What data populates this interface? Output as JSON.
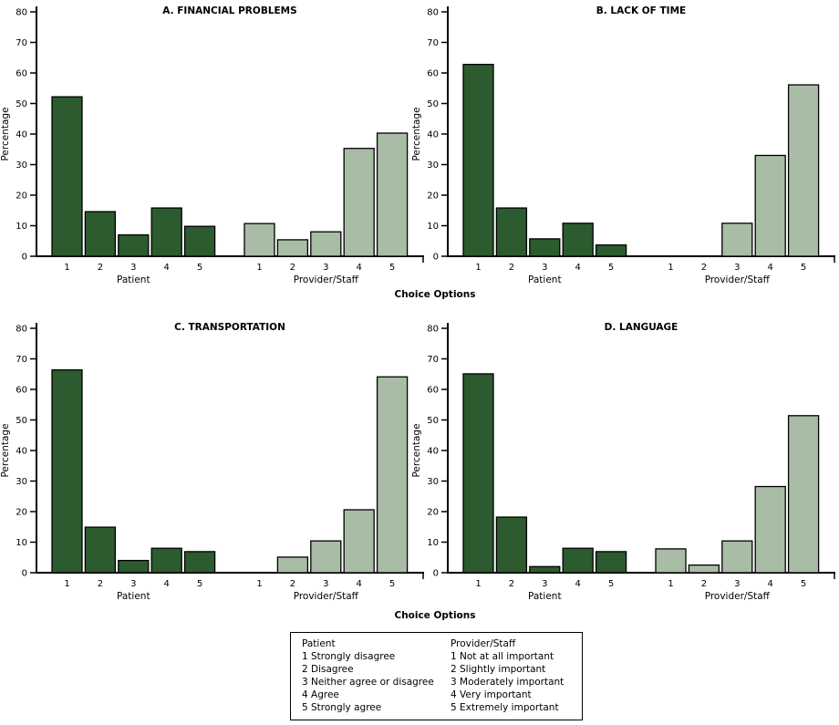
{
  "figure": {
    "ylabel": "Percentage",
    "xlabel": "Choice Options",
    "ylim": [
      0,
      80
    ],
    "yticks": [
      0,
      10,
      20,
      30,
      40,
      50,
      60,
      70,
      80
    ],
    "categories": [
      "1",
      "2",
      "3",
      "4",
      "5"
    ],
    "series_names": [
      "Patient",
      "Provider/Staff"
    ],
    "colors": {
      "patient_bar": "#2b5b2f",
      "provider_bar": "#a9bca6",
      "axis": "#000000",
      "background": "#ffffff"
    }
  },
  "chart_data": [
    {
      "type": "bar",
      "panel": "A",
      "title": "A. FINANCIAL PROBLEMS",
      "xlabel": "Choice Options",
      "ylabel": "Percentage",
      "ylim": [
        0,
        80
      ],
      "categories": [
        "1",
        "2",
        "3",
        "4",
        "5"
      ],
      "series": [
        {
          "name": "Patient",
          "values": [
            52.2,
            14.6,
            7.0,
            15.8,
            9.8
          ]
        },
        {
          "name": "Provider/Staff",
          "values": [
            10.7,
            5.4,
            8.0,
            35.3,
            40.3
          ]
        }
      ]
    },
    {
      "type": "bar",
      "panel": "B",
      "title": "B. LACK OF TIME",
      "xlabel": "Choice Options",
      "ylabel": "Percentage",
      "ylim": [
        0,
        80
      ],
      "categories": [
        "1",
        "2",
        "3",
        "4",
        "5"
      ],
      "series": [
        {
          "name": "Patient",
          "values": [
            62.8,
            15.8,
            5.7,
            10.8,
            3.7
          ]
        },
        {
          "name": "Provider/Staff",
          "values": [
            0,
            0,
            10.8,
            33.0,
            56.1
          ]
        }
      ]
    },
    {
      "type": "bar",
      "panel": "C",
      "title": "C. TRANSPORTATION",
      "xlabel": "Choice Options",
      "ylabel": "Percentage",
      "ylim": [
        0,
        80
      ],
      "categories": [
        "1",
        "2",
        "3",
        "4",
        "5"
      ],
      "series": [
        {
          "name": "Patient",
          "values": [
            66.4,
            14.9,
            4.0,
            8.0,
            6.9
          ]
        },
        {
          "name": "Provider/Staff",
          "values": [
            0,
            5.1,
            10.4,
            20.6,
            64.1
          ]
        }
      ]
    },
    {
      "type": "bar",
      "panel": "D",
      "title": "D. LANGUAGE",
      "xlabel": "Choice Options",
      "ylabel": "Percentage",
      "ylim": [
        0,
        80
      ],
      "categories": [
        "1",
        "2",
        "3",
        "4",
        "5"
      ],
      "series": [
        {
          "name": "Patient",
          "values": [
            65.1,
            18.2,
            2.0,
            8.0,
            6.9
          ]
        },
        {
          "name": "Provider/Staff",
          "values": [
            7.8,
            2.5,
            10.4,
            28.2,
            51.4
          ]
        }
      ]
    }
  ],
  "legend": {
    "columns": [
      {
        "header": "Patient",
        "items": [
          "1 Strongly disagree",
          "2 Disagree",
          "3 Neither agree or disagree",
          "4 Agree",
          "5 Strongly agree"
        ]
      },
      {
        "header": "Provider/Staff",
        "items": [
          "1 Not at all important",
          "2 Slightly important",
          "3 Moderately important",
          "4 Very important",
          "5 Extremely important"
        ]
      }
    ]
  }
}
